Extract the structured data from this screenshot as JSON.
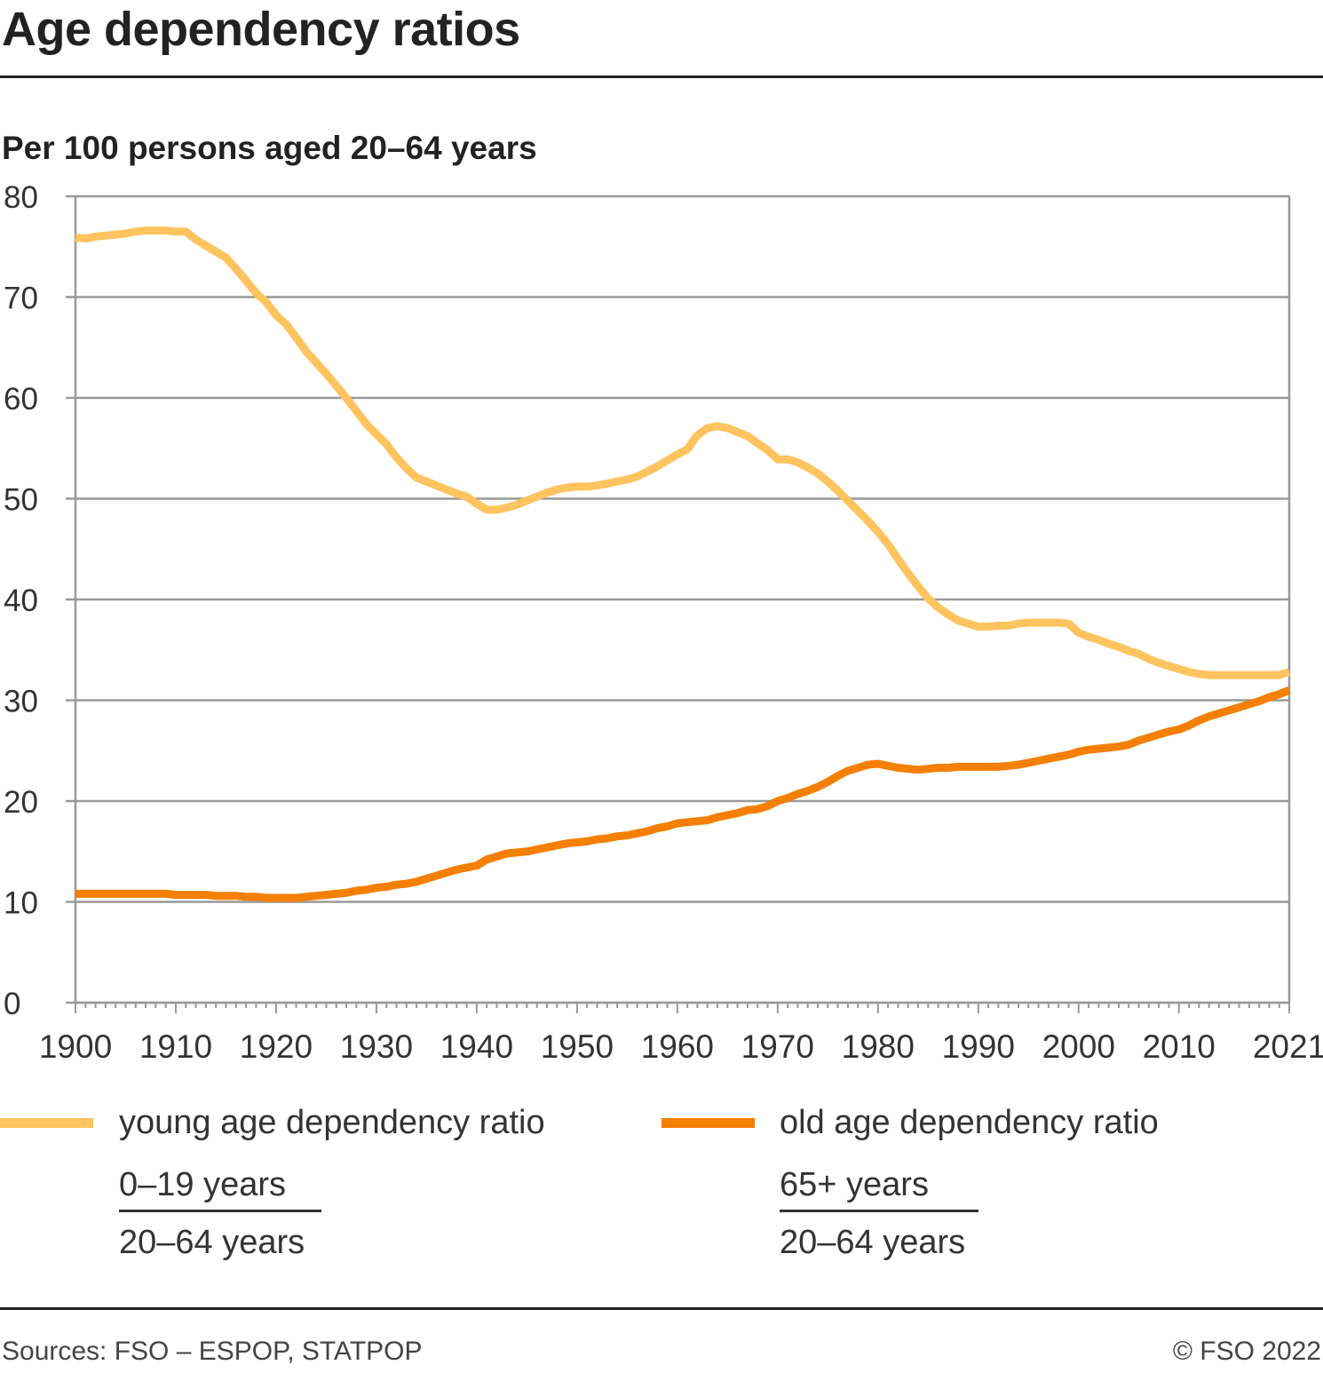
{
  "header": {
    "title": "Age dependency ratios",
    "subtitle": "Per 100 persons aged 20–64 years"
  },
  "colors": {
    "young": "#FFC35F",
    "old": "#F57F00",
    "grid": "#999999"
  },
  "legend": [
    {
      "label": "young age dependency ratio",
      "numerator": "0–19 years",
      "denominator": "20–64 years"
    },
    {
      "label": "old age dependency ratio",
      "numerator": "65+ years",
      "denominator": "20–64 years"
    }
  ],
  "footer": {
    "source": "Sources: FSO – ESPOP, STATPOP",
    "copyright": "© FSO 2022"
  },
  "chart_data": {
    "type": "line",
    "title": "Age dependency ratios",
    "subtitle": "Per 100 persons aged 20–64 years",
    "xlim": [
      1900,
      2021
    ],
    "ylim": [
      0,
      80
    ],
    "y_ticks": [
      0,
      10,
      20,
      30,
      40,
      50,
      60,
      70,
      80
    ],
    "x_ticks": [
      1900,
      1910,
      1920,
      1930,
      1940,
      1950,
      1960,
      1970,
      1980,
      1990,
      2000,
      2010,
      2021
    ],
    "grid": true,
    "legend_position": "bottom",
    "series": [
      {
        "name": "young age dependency ratio",
        "color": "#FFC35F",
        "points": [
          [
            1900,
            75.9
          ],
          [
            1901,
            75.8
          ],
          [
            1902,
            76.0
          ],
          [
            1903,
            76.1
          ],
          [
            1904,
            76.2
          ],
          [
            1905,
            76.3
          ],
          [
            1906,
            76.5
          ],
          [
            1907,
            76.6
          ],
          [
            1908,
            76.6
          ],
          [
            1909,
            76.6
          ],
          [
            1910,
            76.5
          ],
          [
            1911,
            76.5
          ],
          [
            1912,
            75.7
          ],
          [
            1913,
            75.1
          ],
          [
            1914,
            74.5
          ],
          [
            1915,
            73.9
          ],
          [
            1916,
            72.8
          ],
          [
            1917,
            71.6
          ],
          [
            1918,
            70.4
          ],
          [
            1919,
            69.5
          ],
          [
            1920,
            68.2
          ],
          [
            1921,
            67.3
          ],
          [
            1922,
            66.0
          ],
          [
            1923,
            64.6
          ],
          [
            1924,
            63.5
          ],
          [
            1925,
            62.4
          ],
          [
            1926,
            61.2
          ],
          [
            1927,
            60.0
          ],
          [
            1928,
            58.7
          ],
          [
            1929,
            57.4
          ],
          [
            1930,
            56.4
          ],
          [
            1931,
            55.4
          ],
          [
            1932,
            54.1
          ],
          [
            1933,
            53.0
          ],
          [
            1934,
            52.1
          ],
          [
            1935,
            51.7
          ],
          [
            1936,
            51.3
          ],
          [
            1937,
            50.9
          ],
          [
            1938,
            50.5
          ],
          [
            1939,
            50.2
          ],
          [
            1940,
            49.5
          ],
          [
            1941,
            48.9
          ],
          [
            1942,
            48.9
          ],
          [
            1943,
            49.1
          ],
          [
            1944,
            49.4
          ],
          [
            1945,
            49.8
          ],
          [
            1946,
            50.2
          ],
          [
            1947,
            50.6
          ],
          [
            1948,
            50.9
          ],
          [
            1949,
            51.1
          ],
          [
            1950,
            51.2
          ],
          [
            1951,
            51.2
          ],
          [
            1952,
            51.3
          ],
          [
            1953,
            51.5
          ],
          [
            1954,
            51.7
          ],
          [
            1955,
            51.9
          ],
          [
            1956,
            52.2
          ],
          [
            1957,
            52.7
          ],
          [
            1958,
            53.2
          ],
          [
            1959,
            53.8
          ],
          [
            1960,
            54.4
          ],
          [
            1961,
            54.9
          ],
          [
            1962,
            56.3
          ],
          [
            1963,
            57.0
          ],
          [
            1964,
            57.2
          ],
          [
            1965,
            57.0
          ],
          [
            1966,
            56.6
          ],
          [
            1967,
            56.2
          ],
          [
            1968,
            55.5
          ],
          [
            1969,
            54.8
          ],
          [
            1970,
            53.9
          ],
          [
            1971,
            53.9
          ],
          [
            1972,
            53.6
          ],
          [
            1973,
            53.1
          ],
          [
            1974,
            52.5
          ],
          [
            1975,
            51.7
          ],
          [
            1976,
            50.8
          ],
          [
            1977,
            49.8
          ],
          [
            1978,
            48.8
          ],
          [
            1979,
            47.8
          ],
          [
            1980,
            46.7
          ],
          [
            1981,
            45.5
          ],
          [
            1982,
            44.0
          ],
          [
            1983,
            42.6
          ],
          [
            1984,
            41.3
          ],
          [
            1985,
            40.1
          ],
          [
            1986,
            39.2
          ],
          [
            1987,
            38.5
          ],
          [
            1988,
            37.9
          ],
          [
            1989,
            37.6
          ],
          [
            1990,
            37.3
          ],
          [
            1991,
            37.3
          ],
          [
            1992,
            37.4
          ],
          [
            1993,
            37.4
          ],
          [
            1994,
            37.6
          ],
          [
            1995,
            37.7
          ],
          [
            1996,
            37.7
          ],
          [
            1997,
            37.7
          ],
          [
            1998,
            37.7
          ],
          [
            1999,
            37.6
          ],
          [
            2000,
            36.7
          ],
          [
            2001,
            36.3
          ],
          [
            2002,
            36.0
          ],
          [
            2003,
            35.6
          ],
          [
            2004,
            35.3
          ],
          [
            2005,
            34.9
          ],
          [
            2006,
            34.6
          ],
          [
            2007,
            34.1
          ],
          [
            2008,
            33.7
          ],
          [
            2009,
            33.4
          ],
          [
            2010,
            33.1
          ],
          [
            2011,
            32.8
          ],
          [
            2012,
            32.6
          ],
          [
            2013,
            32.5
          ],
          [
            2014,
            32.5
          ],
          [
            2015,
            32.5
          ],
          [
            2016,
            32.5
          ],
          [
            2017,
            32.5
          ],
          [
            2018,
            32.5
          ],
          [
            2019,
            32.5
          ],
          [
            2020,
            32.5
          ],
          [
            2021,
            32.8
          ]
        ]
      },
      {
        "name": "old age dependency ratio",
        "color": "#F57F00",
        "points": [
          [
            1900,
            10.8
          ],
          [
            1901,
            10.8
          ],
          [
            1902,
            10.8
          ],
          [
            1903,
            10.8
          ],
          [
            1904,
            10.8
          ],
          [
            1905,
            10.8
          ],
          [
            1906,
            10.8
          ],
          [
            1907,
            10.8
          ],
          [
            1908,
            10.8
          ],
          [
            1909,
            10.8
          ],
          [
            1910,
            10.7
          ],
          [
            1911,
            10.7
          ],
          [
            1912,
            10.7
          ],
          [
            1913,
            10.7
          ],
          [
            1914,
            10.6
          ],
          [
            1915,
            10.6
          ],
          [
            1916,
            10.6
          ],
          [
            1917,
            10.5
          ],
          [
            1918,
            10.5
          ],
          [
            1919,
            10.4
          ],
          [
            1920,
            10.4
          ],
          [
            1921,
            10.4
          ],
          [
            1922,
            10.4
          ],
          [
            1923,
            10.5
          ],
          [
            1924,
            10.6
          ],
          [
            1925,
            10.7
          ],
          [
            1926,
            10.8
          ],
          [
            1927,
            10.9
          ],
          [
            1928,
            11.1
          ],
          [
            1929,
            11.2
          ],
          [
            1930,
            11.4
          ],
          [
            1931,
            11.5
          ],
          [
            1932,
            11.7
          ],
          [
            1933,
            11.8
          ],
          [
            1934,
            12.0
          ],
          [
            1935,
            12.3
          ],
          [
            1936,
            12.6
          ],
          [
            1937,
            12.9
          ],
          [
            1938,
            13.2
          ],
          [
            1939,
            13.4
          ],
          [
            1940,
            13.6
          ],
          [
            1941,
            14.2
          ],
          [
            1942,
            14.5
          ],
          [
            1943,
            14.8
          ],
          [
            1944,
            14.9
          ],
          [
            1945,
            15.0
          ],
          [
            1946,
            15.2
          ],
          [
            1947,
            15.4
          ],
          [
            1948,
            15.6
          ],
          [
            1949,
            15.8
          ],
          [
            1950,
            15.9
          ],
          [
            1951,
            16.0
          ],
          [
            1952,
            16.2
          ],
          [
            1953,
            16.3
          ],
          [
            1954,
            16.5
          ],
          [
            1955,
            16.6
          ],
          [
            1956,
            16.8
          ],
          [
            1957,
            17.0
          ],
          [
            1958,
            17.3
          ],
          [
            1959,
            17.5
          ],
          [
            1960,
            17.8
          ],
          [
            1961,
            17.9
          ],
          [
            1962,
            18.0
          ],
          [
            1963,
            18.1
          ],
          [
            1964,
            18.4
          ],
          [
            1965,
            18.6
          ],
          [
            1966,
            18.8
          ],
          [
            1967,
            19.1
          ],
          [
            1968,
            19.2
          ],
          [
            1969,
            19.5
          ],
          [
            1970,
            20.0
          ],
          [
            1971,
            20.3
          ],
          [
            1972,
            20.7
          ],
          [
            1973,
            21.0
          ],
          [
            1974,
            21.4
          ],
          [
            1975,
            21.9
          ],
          [
            1976,
            22.5
          ],
          [
            1977,
            23.0
          ],
          [
            1978,
            23.3
          ],
          [
            1979,
            23.6
          ],
          [
            1980,
            23.7
          ],
          [
            1981,
            23.5
          ],
          [
            1982,
            23.3
          ],
          [
            1983,
            23.2
          ],
          [
            1984,
            23.1
          ],
          [
            1985,
            23.2
          ],
          [
            1986,
            23.3
          ],
          [
            1987,
            23.3
          ],
          [
            1988,
            23.4
          ],
          [
            1989,
            23.4
          ],
          [
            1990,
            23.4
          ],
          [
            1991,
            23.4
          ],
          [
            1992,
            23.4
          ],
          [
            1993,
            23.5
          ],
          [
            1994,
            23.6
          ],
          [
            1995,
            23.8
          ],
          [
            1996,
            24.0
          ],
          [
            1997,
            24.2
          ],
          [
            1998,
            24.4
          ],
          [
            1999,
            24.6
          ],
          [
            2000,
            24.9
          ],
          [
            2001,
            25.1
          ],
          [
            2002,
            25.2
          ],
          [
            2003,
            25.3
          ],
          [
            2004,
            25.4
          ],
          [
            2005,
            25.6
          ],
          [
            2006,
            26.0
          ],
          [
            2007,
            26.3
          ],
          [
            2008,
            26.6
          ],
          [
            2009,
            26.9
          ],
          [
            2010,
            27.1
          ],
          [
            2011,
            27.5
          ],
          [
            2012,
            28.0
          ],
          [
            2013,
            28.4
          ],
          [
            2014,
            28.7
          ],
          [
            2015,
            29.0
          ],
          [
            2016,
            29.3
          ],
          [
            2017,
            29.6
          ],
          [
            2018,
            29.9
          ],
          [
            2019,
            30.3
          ],
          [
            2020,
            30.6
          ],
          [
            2021,
            31.0
          ]
        ]
      }
    ]
  }
}
